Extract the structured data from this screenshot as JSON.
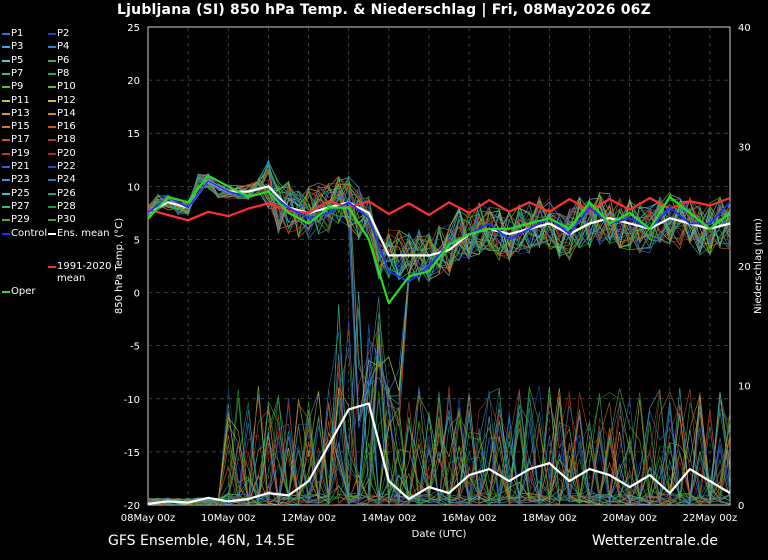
{
  "chart_data": {
    "type": "line",
    "title": "Ljubljana  (SI)  850 hPa Temp. & Niederschlag | Fri, 08May2026 06Z",
    "xlabel": "Date (UTC)",
    "ylabel": "850 hPa Temp. (°C)",
    "y2label": "Niederschlag (mm)",
    "ylim": [
      -20,
      25
    ],
    "y2lim": [
      0,
      40
    ],
    "yticks": [
      "25",
      "20",
      "15",
      "10",
      "5",
      "0",
      "-5",
      "-10",
      "-15",
      "-20"
    ],
    "y2ticks": [
      "40",
      "30",
      "20",
      "10",
      "0"
    ],
    "xticks": [
      "08May 00z",
      "10May 00z",
      "12May 00z",
      "14May 00z",
      "16May 00z",
      "18May 00z",
      "20May 00z",
      "22May 00z"
    ],
    "grid": true,
    "legend_position": "left",
    "legend": [
      {
        "label": "P1",
        "color": "#3a6fd8"
      },
      {
        "label": "P2",
        "color": "#1f3fbf"
      },
      {
        "label": "P3",
        "color": "#4aa0d8"
      },
      {
        "label": "P4",
        "color": "#2a86c8"
      },
      {
        "label": "P5",
        "color": "#5cc8d8"
      },
      {
        "label": "P6",
        "color": "#2fa89a"
      },
      {
        "label": "P7",
        "color": "#3fbf7f"
      },
      {
        "label": "P8",
        "color": "#2aa84a"
      },
      {
        "label": "P9",
        "color": "#4cc82a"
      },
      {
        "label": "P10",
        "color": "#6ab82a"
      },
      {
        "label": "P11",
        "color": "#c8c82a"
      },
      {
        "label": "P12",
        "color": "#d8b83a"
      },
      {
        "label": "P13",
        "color": "#d89a3a"
      },
      {
        "label": "P14",
        "color": "#c8882a"
      },
      {
        "label": "P15",
        "color": "#d8703a"
      },
      {
        "label": "P16",
        "color": "#c8582a"
      },
      {
        "label": "P17",
        "color": "#d8482a"
      },
      {
        "label": "P18",
        "color": "#b8381a"
      },
      {
        "label": "P19",
        "color": "#c83a1a"
      },
      {
        "label": "P20",
        "color": "#a82a1a"
      },
      {
        "label": "P21",
        "color": "#3a5fd8"
      },
      {
        "label": "P22",
        "color": "#1f4fc8"
      },
      {
        "label": "P23",
        "color": "#4a8fd8"
      },
      {
        "label": "P24",
        "color": "#2a7ab8"
      },
      {
        "label": "P25",
        "color": "#4ab8c8"
      },
      {
        "label": "P26",
        "color": "#2a9a8a"
      },
      {
        "label": "P27",
        "color": "#3ab87a"
      },
      {
        "label": "P28",
        "color": "#2a983a"
      },
      {
        "label": "P29",
        "color": "#4ab82a"
      },
      {
        "label": "P30",
        "color": "#3aa82a"
      },
      {
        "label": "Control",
        "color": "#1f2fff"
      },
      {
        "label": "Ens. mean",
        "color": "#ffffff"
      },
      {
        "label": "1991-2020\nmean",
        "color": "#ff3030"
      },
      {
        "label": "Oper",
        "color": "#22dd22"
      }
    ],
    "series": [
      {
        "name": "Ens. mean",
        "axis": "temp",
        "x": [
          0,
          0.5,
          1,
          1.5,
          2,
          2.5,
          3,
          3.5,
          4,
          4.5,
          5,
          5.5,
          6,
          6.5,
          7,
          7.5,
          8,
          8.5,
          9,
          9.5,
          10,
          10.5,
          11,
          11.5,
          12,
          12.5,
          13,
          13.5,
          14,
          14.5
        ],
        "values": [
          7.5,
          8.5,
          8,
          10.5,
          9.5,
          9.5,
          10,
          8,
          7.5,
          8,
          8.5,
          7.5,
          3.5,
          3.5,
          3.5,
          4,
          5.5,
          6,
          5.5,
          6,
          6.5,
          5.5,
          6.5,
          7,
          6.5,
          6,
          7,
          6.5,
          6,
          6.5
        ]
      },
      {
        "name": "1991-2020\nmean",
        "axis": "temp",
        "x": [
          0,
          0.5,
          1,
          1.5,
          2,
          2.5,
          3,
          3.5,
          4,
          4.5,
          5,
          5.5,
          6,
          6.5,
          7,
          7.5,
          8,
          8.5,
          9,
          9.5,
          10,
          10.5,
          11,
          11.5,
          12,
          12.5,
          13,
          13.5,
          14,
          14.5
        ],
        "values": [
          7.8,
          7.3,
          6.8,
          7.6,
          7.2,
          7.9,
          8.4,
          7.7,
          7.5,
          8.6,
          8,
          8.6,
          7.4,
          8.4,
          7.3,
          8.5,
          7.5,
          8.7,
          7.6,
          8.5,
          7.6,
          8.8,
          7.7,
          8.8,
          7.8,
          8.9,
          7.9,
          8.6,
          8.2,
          8.9
        ]
      },
      {
        "name": "Control",
        "axis": "temp",
        "x": [
          0,
          0.5,
          1,
          1.5,
          2,
          2.5,
          3,
          3.5,
          4,
          4.5,
          5,
          5.5,
          6,
          6.5,
          7,
          7.5,
          8,
          8.5,
          9,
          9.5,
          10,
          10.5,
          11,
          11.5,
          12,
          12.5,
          13,
          13.5,
          14,
          14.5
        ],
        "values": [
          7.5,
          9,
          8,
          10.5,
          9.5,
          9,
          9.5,
          8,
          7,
          7.5,
          8.5,
          7,
          2,
          1,
          2.5,
          4.5,
          5.5,
          6.5,
          5,
          6,
          7,
          5.5,
          8,
          6.5,
          7,
          6,
          8,
          6.5,
          6.5,
          8.5
        ]
      },
      {
        "name": "Oper",
        "axis": "temp",
        "x": [
          0,
          0.5,
          1,
          1.5,
          2,
          2.5,
          3,
          3.5,
          4,
          4.5,
          5,
          5.5,
          6,
          6.5,
          7,
          7.5,
          8,
          8.5,
          9,
          9.5,
          10,
          10.5,
          11,
          11.5,
          12,
          12.5,
          13,
          13.5,
          14,
          14.5
        ],
        "values": [
          7,
          9,
          8.5,
          11,
          10,
          9,
          9.5,
          7.5,
          6.5,
          8,
          8,
          5,
          -1,
          1.5,
          2,
          4.5,
          5.5,
          6,
          6,
          6.5,
          7,
          6,
          8.5,
          6.5,
          7.5,
          6,
          9,
          7.5,
          6,
          7.5
        ]
      },
      {
        "name": "Ens. mean",
        "axis": "precip",
        "x": [
          0,
          0.5,
          1,
          1.5,
          2,
          2.5,
          3,
          3.5,
          4,
          4.5,
          5,
          5.5,
          6,
          6.5,
          7,
          7.5,
          8,
          8.5,
          9,
          9.5,
          10,
          10.5,
          11,
          11.5,
          12,
          12.5,
          13,
          13.5,
          14,
          14.5
        ],
        "values": [
          0.1,
          0.3,
          0.2,
          0.6,
          0.3,
          0.5,
          1,
          0.8,
          2,
          5,
          8,
          8.5,
          2,
          0.5,
          1.5,
          1,
          2.5,
          3,
          2,
          3,
          3.5,
          2,
          3,
          2.5,
          1.5,
          2.5,
          1,
          3,
          2,
          1
        ]
      }
    ]
  },
  "footer": {
    "left": "GFS Ensemble, 46N, 14.5E",
    "right": "Wetterzentrale.de"
  }
}
